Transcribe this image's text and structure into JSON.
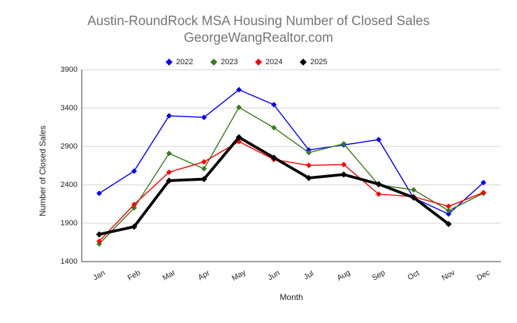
{
  "chart_data": {
    "type": "line",
    "title": "Austin-RoundRock MSA Housing Number of Closed Sales",
    "subtitle": "GeorgeWangRealtor.com",
    "x_label": "Month",
    "y_label": "Number of Closed Sales",
    "categories": [
      "Jan",
      "Feb",
      "Mar",
      "Apr",
      "May",
      "Jun",
      "Jul",
      "Aug",
      "Sep",
      "Oct",
      "Nov",
      "Dec"
    ],
    "series": [
      {
        "name": "2022",
        "color": "#0000ff",
        "values": [
          2290,
          2580,
          3300,
          3280,
          3640,
          3445,
          2855,
          2920,
          2990,
          2230,
          2020,
          2430
        ]
      },
      {
        "name": "2023",
        "color": "#3a7d1e",
        "values": [
          1630,
          2100,
          2810,
          2610,
          3410,
          3145,
          2820,
          2935,
          2400,
          2335,
          2065,
          2290
        ]
      },
      {
        "name": "2024",
        "color": "#ff0000",
        "values": [
          1665,
          2145,
          2565,
          2700,
          2965,
          2730,
          2655,
          2665,
          2280,
          2245,
          2120,
          2300
        ]
      },
      {
        "name": "2025",
        "color": "#000000",
        "values": [
          1755,
          1855,
          2455,
          2475,
          3020,
          2755,
          2490,
          2535,
          2410,
          2235,
          1890,
          null
        ]
      }
    ],
    "ylim": [
      1400,
      3900
    ],
    "yticks": [
      1400,
      1900,
      2400,
      2900,
      3400,
      3900
    ],
    "grid": true
  }
}
